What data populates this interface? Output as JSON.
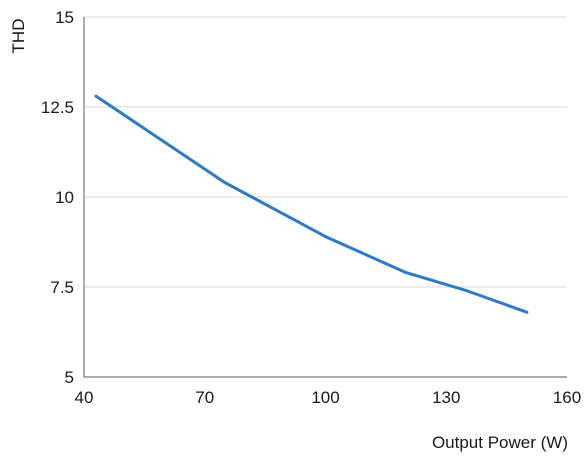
{
  "chart_data": {
    "type": "line",
    "xlabel": "Output Power (W)",
    "ylabel": "THD",
    "xlim": [
      40,
      160
    ],
    "ylim": [
      5,
      15
    ],
    "x_ticks": [
      "40",
      "70",
      "100",
      "130",
      "160"
    ],
    "y_ticks": [
      "5",
      "7.5",
      "10",
      "12.5",
      "15"
    ],
    "grid": "horizontal",
    "legend": "none",
    "series": [
      {
        "color": "#2e7ac4",
        "points": [
          {
            "x": 43,
            "y": 12.8
          },
          {
            "x": 75,
            "y": 10.4
          },
          {
            "x": 100,
            "y": 8.9
          },
          {
            "x": 120,
            "y": 7.9
          },
          {
            "x": 135,
            "y": 7.4
          },
          {
            "x": 150,
            "y": 6.8
          }
        ]
      }
    ]
  }
}
